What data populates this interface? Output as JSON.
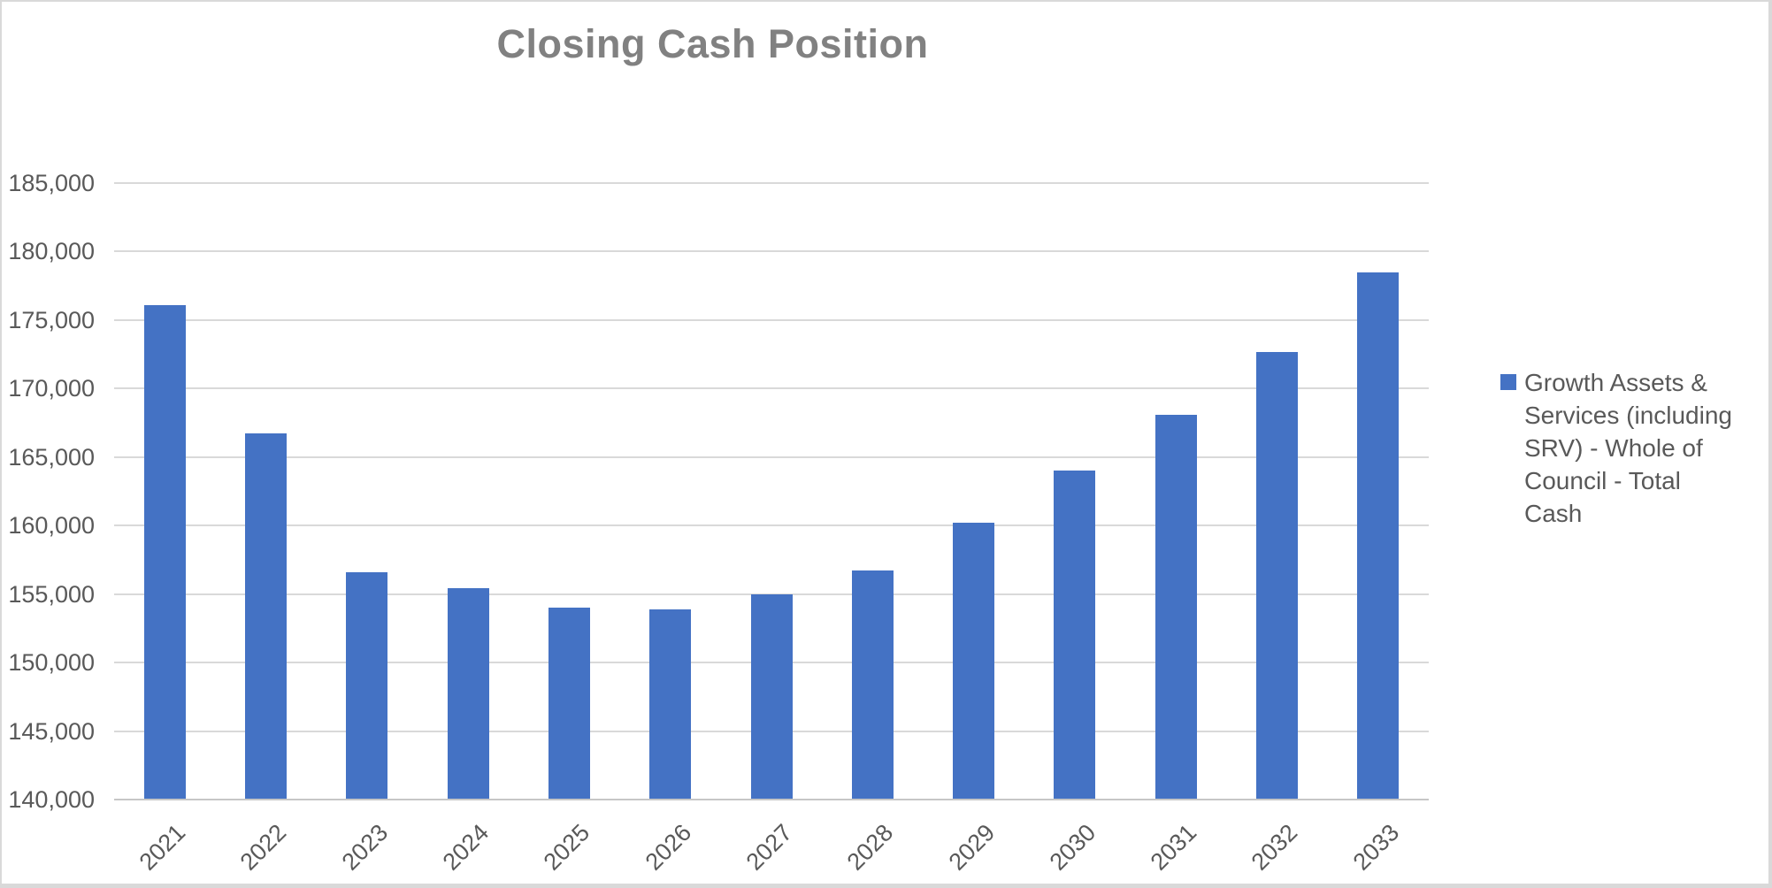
{
  "title": "Closing Cash Position",
  "legend": {
    "label": "Growth Assets & Services (including SRV) - Whole of Council - Total Cash"
  },
  "colors": {
    "bar": "#4472C4",
    "title_text": "#818181",
    "axis_text": "#595959",
    "legend_text": "#595959",
    "gridline": "#D9D9D9",
    "axis_line": "#C6C6C6",
    "background": "#FFFFFF",
    "frame_border": "#D9D9D9"
  },
  "chart_data": {
    "type": "bar",
    "title": "Closing Cash Position",
    "categories": [
      "2021",
      "2022",
      "2023",
      "2024",
      "2025",
      "2026",
      "2027",
      "2028",
      "2029",
      "2030",
      "2031",
      "2032",
      "2033"
    ],
    "series": [
      {
        "name": "Growth Assets & Services (including SRV) - Whole of Council - Total Cash",
        "color": "#4472C4",
        "values": [
          176100,
          166700,
          156600,
          155400,
          154000,
          153900,
          155000,
          156700,
          160200,
          164000,
          168100,
          172700,
          178500
        ]
      }
    ],
    "xlabel": "",
    "ylabel": "",
    "ylim": [
      140000,
      185000
    ],
    "ytick_step": 5000,
    "ytick_labels": [
      "140,000",
      "145,000",
      "150,000",
      "155,000",
      "160,000",
      "165,000",
      "170,000",
      "175,000",
      "180,000",
      "185,000"
    ],
    "grid": true,
    "gridlines": "horizontal",
    "legend_position": "right",
    "x_label_rotation_deg": -45
  }
}
